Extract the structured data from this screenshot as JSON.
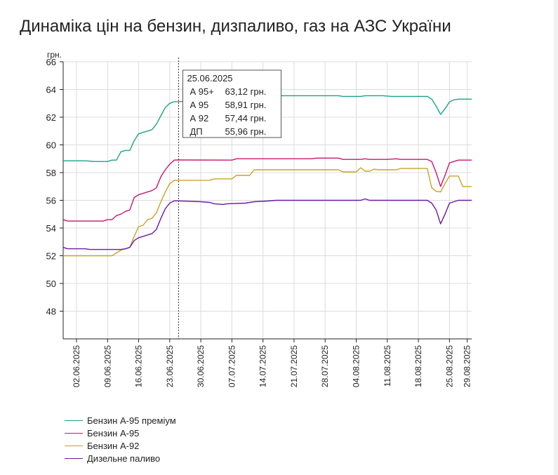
{
  "title": "Динаміка цін на бензин, дизпаливо, газ на АЗС України",
  "chart_data": {
    "type": "line",
    "ylabel": "грн.",
    "ylim": [
      46,
      66
    ],
    "yticks": [
      48,
      50,
      52,
      54,
      56,
      58,
      60,
      62,
      64,
      66
    ],
    "xrange": [
      "2025-05-30",
      "2025-08-30"
    ],
    "xticks": [
      "02.06.2025",
      "09.06.2025",
      "16.06.2025",
      "23.06.2025",
      "30.06.2025",
      "07.07.2025",
      "14.07.2025",
      "21.07.2025",
      "28.07.2025",
      "04.08.2025",
      "11.08.2025",
      "18.08.2025",
      "25.08.2025",
      "29.08.2025"
    ],
    "grid": true,
    "legend_position": "bottom-left",
    "tooltip": {
      "date": "25.06.2025",
      "rows": [
        {
          "label": "А 95+",
          "value": "63,12 грн."
        },
        {
          "label": "А 95",
          "value": "58,91 грн."
        },
        {
          "label": "А 92",
          "value": "57,44 грн."
        },
        {
          "label": "ДП",
          "value": "55,96 грн."
        }
      ]
    },
    "series": [
      {
        "name": "Бензин А-95 преміум",
        "color": "#1aa38a",
        "points": [
          [
            "2025-05-30",
            58.85
          ],
          [
            "2025-06-01",
            58.85
          ],
          [
            "2025-06-04",
            58.85
          ],
          [
            "2025-06-06",
            58.8
          ],
          [
            "2025-06-09",
            58.8
          ],
          [
            "2025-06-10",
            58.9
          ],
          [
            "2025-06-11",
            58.9
          ],
          [
            "2025-06-12",
            59.5
          ],
          [
            "2025-06-13",
            59.6
          ],
          [
            "2025-06-14",
            59.6
          ],
          [
            "2025-06-15",
            60.3
          ],
          [
            "2025-06-16",
            60.8
          ],
          [
            "2025-06-17",
            60.9
          ],
          [
            "2025-06-18",
            61.0
          ],
          [
            "2025-06-19",
            61.1
          ],
          [
            "2025-06-20",
            61.5
          ],
          [
            "2025-06-21",
            62.1
          ],
          [
            "2025-06-22",
            62.7
          ],
          [
            "2025-06-23",
            63.0
          ],
          [
            "2025-06-24",
            63.12
          ],
          [
            "2025-06-25",
            63.12
          ],
          [
            "2025-06-27",
            63.15
          ],
          [
            "2025-07-05",
            63.2
          ],
          [
            "2025-07-10",
            63.5
          ],
          [
            "2025-07-14",
            63.55
          ],
          [
            "2025-07-20",
            63.55
          ],
          [
            "2025-07-31",
            63.55
          ],
          [
            "2025-08-01",
            63.5
          ],
          [
            "2025-08-05",
            63.5
          ],
          [
            "2025-08-06",
            63.55
          ],
          [
            "2025-08-10",
            63.55
          ],
          [
            "2025-08-12",
            63.5
          ],
          [
            "2025-08-19",
            63.5
          ],
          [
            "2025-08-20",
            63.5
          ],
          [
            "2025-08-21",
            63.3
          ],
          [
            "2025-08-22",
            62.8
          ],
          [
            "2025-08-23",
            62.2
          ],
          [
            "2025-08-24",
            62.6
          ],
          [
            "2025-08-25",
            63.1
          ],
          [
            "2025-08-26",
            63.25
          ],
          [
            "2025-08-27",
            63.3
          ],
          [
            "2025-08-30",
            63.3
          ]
        ]
      },
      {
        "name": "Бензин А-95",
        "color": "#c8176f",
        "points": [
          [
            "2025-05-30",
            54.6
          ],
          [
            "2025-05-31",
            54.5
          ],
          [
            "2025-06-04",
            54.5
          ],
          [
            "2025-06-08",
            54.5
          ],
          [
            "2025-06-09",
            54.6
          ],
          [
            "2025-06-10",
            54.6
          ],
          [
            "2025-06-11",
            54.9
          ],
          [
            "2025-06-12",
            55.0
          ],
          [
            "2025-06-13",
            55.2
          ],
          [
            "2025-06-14",
            55.3
          ],
          [
            "2025-06-15",
            56.2
          ],
          [
            "2025-06-16",
            56.4
          ],
          [
            "2025-06-17",
            56.5
          ],
          [
            "2025-06-18",
            56.6
          ],
          [
            "2025-06-19",
            56.7
          ],
          [
            "2025-06-20",
            56.9
          ],
          [
            "2025-06-21",
            57.7
          ],
          [
            "2025-06-22",
            58.2
          ],
          [
            "2025-06-23",
            58.6
          ],
          [
            "2025-06-24",
            58.9
          ],
          [
            "2025-06-25",
            58.91
          ],
          [
            "2025-07-07",
            58.9
          ],
          [
            "2025-07-08",
            59.0
          ],
          [
            "2025-07-25",
            59.0
          ],
          [
            "2025-07-26",
            59.05
          ],
          [
            "2025-07-31",
            59.05
          ],
          [
            "2025-08-01",
            58.95
          ],
          [
            "2025-08-05",
            58.95
          ],
          [
            "2025-08-06",
            59.0
          ],
          [
            "2025-08-07",
            58.95
          ],
          [
            "2025-08-11",
            58.95
          ],
          [
            "2025-08-13",
            59.0
          ],
          [
            "2025-08-14",
            58.95
          ],
          [
            "2025-08-20",
            58.95
          ],
          [
            "2025-08-21",
            58.8
          ],
          [
            "2025-08-22",
            58.0
          ],
          [
            "2025-08-23",
            57.0
          ],
          [
            "2025-08-24",
            57.8
          ],
          [
            "2025-08-25",
            58.7
          ],
          [
            "2025-08-26",
            58.8
          ],
          [
            "2025-08-27",
            58.9
          ],
          [
            "2025-08-30",
            58.9
          ]
        ]
      },
      {
        "name": "Бензин А-92",
        "color": "#c9a227",
        "points": [
          [
            "2025-05-30",
            52.0
          ],
          [
            "2025-06-04",
            52.0
          ],
          [
            "2025-06-09",
            52.0
          ],
          [
            "2025-06-10",
            52.0
          ],
          [
            "2025-06-11",
            52.2
          ],
          [
            "2025-06-12",
            52.4
          ],
          [
            "2025-06-13",
            52.5
          ],
          [
            "2025-06-14",
            52.6
          ],
          [
            "2025-06-15",
            53.4
          ],
          [
            "2025-06-16",
            54.1
          ],
          [
            "2025-06-17",
            54.2
          ],
          [
            "2025-06-18",
            54.6
          ],
          [
            "2025-06-19",
            54.7
          ],
          [
            "2025-06-20",
            55.1
          ],
          [
            "2025-06-21",
            55.9
          ],
          [
            "2025-06-22",
            56.6
          ],
          [
            "2025-06-23",
            57.2
          ],
          [
            "2025-06-24",
            57.44
          ],
          [
            "2025-06-25",
            57.44
          ],
          [
            "2025-07-02",
            57.45
          ],
          [
            "2025-07-03",
            57.55
          ],
          [
            "2025-07-07",
            57.55
          ],
          [
            "2025-07-08",
            57.8
          ],
          [
            "2025-07-11",
            57.8
          ],
          [
            "2025-07-12",
            58.2
          ],
          [
            "2025-07-31",
            58.2
          ],
          [
            "2025-08-01",
            58.05
          ],
          [
            "2025-08-04",
            58.05
          ],
          [
            "2025-08-05",
            58.35
          ],
          [
            "2025-08-06",
            58.1
          ],
          [
            "2025-08-07",
            58.1
          ],
          [
            "2025-08-08",
            58.25
          ],
          [
            "2025-08-09",
            58.2
          ],
          [
            "2025-08-13",
            58.2
          ],
          [
            "2025-08-14",
            58.3
          ],
          [
            "2025-08-20",
            58.3
          ],
          [
            "2025-08-21",
            56.9
          ],
          [
            "2025-08-22",
            56.65
          ],
          [
            "2025-08-23",
            56.6
          ],
          [
            "2025-08-24",
            57.2
          ],
          [
            "2025-08-25",
            57.75
          ],
          [
            "2025-08-27",
            57.75
          ],
          [
            "2025-08-28",
            57.0
          ],
          [
            "2025-08-30",
            57.0
          ]
        ]
      },
      {
        "name": "Дизельне паливо",
        "color": "#6a1aa8",
        "points": [
          [
            "2025-05-30",
            52.6
          ],
          [
            "2025-05-31",
            52.5
          ],
          [
            "2025-06-04",
            52.5
          ],
          [
            "2025-06-05",
            52.45
          ],
          [
            "2025-06-09",
            52.45
          ],
          [
            "2025-06-10",
            52.45
          ],
          [
            "2025-06-12",
            52.45
          ],
          [
            "2025-06-13",
            52.5
          ],
          [
            "2025-06-14",
            52.6
          ],
          [
            "2025-06-15",
            53.1
          ],
          [
            "2025-06-16",
            53.3
          ],
          [
            "2025-06-17",
            53.4
          ],
          [
            "2025-06-18",
            53.5
          ],
          [
            "2025-06-19",
            53.6
          ],
          [
            "2025-06-20",
            53.9
          ],
          [
            "2025-06-21",
            54.7
          ],
          [
            "2025-06-22",
            55.4
          ],
          [
            "2025-06-23",
            55.8
          ],
          [
            "2025-06-24",
            55.96
          ],
          [
            "2025-06-25",
            55.96
          ],
          [
            "2025-06-30",
            55.9
          ],
          [
            "2025-07-02",
            55.85
          ],
          [
            "2025-07-03",
            55.75
          ],
          [
            "2025-07-05",
            55.7
          ],
          [
            "2025-07-06",
            55.75
          ],
          [
            "2025-07-10",
            55.8
          ],
          [
            "2025-07-12",
            55.9
          ],
          [
            "2025-07-15",
            55.95
          ],
          [
            "2025-07-17",
            56.0
          ],
          [
            "2025-07-31",
            56.0
          ],
          [
            "2025-08-05",
            56.0
          ],
          [
            "2025-08-06",
            56.1
          ],
          [
            "2025-08-07",
            56.0
          ],
          [
            "2025-08-20",
            56.0
          ],
          [
            "2025-08-21",
            55.8
          ],
          [
            "2025-08-22",
            55.3
          ],
          [
            "2025-08-23",
            54.3
          ],
          [
            "2025-08-24",
            55.0
          ],
          [
            "2025-08-25",
            55.8
          ],
          [
            "2025-08-26",
            55.9
          ],
          [
            "2025-08-27",
            56.0
          ],
          [
            "2025-08-30",
            56.0
          ]
        ]
      }
    ]
  }
}
